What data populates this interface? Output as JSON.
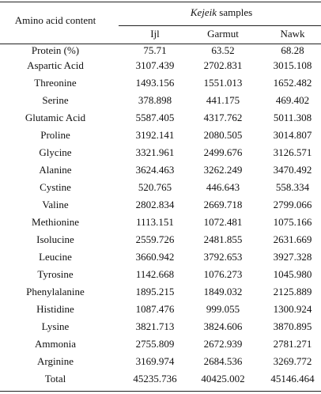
{
  "table": {
    "header": {
      "row_label": "Amino acid content",
      "group": {
        "emphasis": "Kejeik",
        "rest": "samples"
      },
      "columns": [
        "Ijl",
        "Garmut",
        "Nawk"
      ]
    },
    "rows": [
      [
        "Protein (%)",
        "75.71",
        "63.52",
        "68.28"
      ],
      [
        "Aspartic Acid",
        "3107.439",
        "2702.831",
        "3015.108"
      ],
      [
        "Threonine",
        "1493.156",
        "1551.013",
        "1652.482"
      ],
      [
        "Serine",
        "378.898",
        "441.175",
        "469.402"
      ],
      [
        "Glutamic Acid",
        "5587.405",
        "4317.762",
        "5011.308"
      ],
      [
        "Proline",
        "3192.141",
        "2080.505",
        "3014.807"
      ],
      [
        "Glycine",
        "3321.961",
        "2499.676",
        "3126.571"
      ],
      [
        "Alanine",
        "3624.463",
        "3262.249",
        "3470.492"
      ],
      [
        "Cystine",
        "520.765",
        "446.643",
        "558.334"
      ],
      [
        "Valine",
        "2802.834",
        "2669.718",
        "2799.066"
      ],
      [
        "Methionine",
        "1113.151",
        "1072.481",
        "1075.166"
      ],
      [
        "Isolucine",
        "2559.726",
        "2481.855",
        "2631.669"
      ],
      [
        "Leucine",
        "3660.942",
        "3792.653",
        "3927.328"
      ],
      [
        "Tyrosine",
        "1142.668",
        "1076.273",
        "1045.980"
      ],
      [
        "Phenylalanine",
        "1895.215",
        "1849.032",
        "2125.889"
      ],
      [
        "Histidine",
        "1087.476",
        "999.055",
        "1300.924"
      ],
      [
        "Lysine",
        "3821.713",
        "3824.606",
        "3870.895"
      ],
      [
        "Ammonia",
        "2755.809",
        "2672.939",
        "2781.271"
      ],
      [
        "Arginine",
        "3169.974",
        "2684.536",
        "3269.772"
      ],
      [
        "Total",
        "45235.736",
        "40425.002",
        "45146.464"
      ]
    ]
  }
}
